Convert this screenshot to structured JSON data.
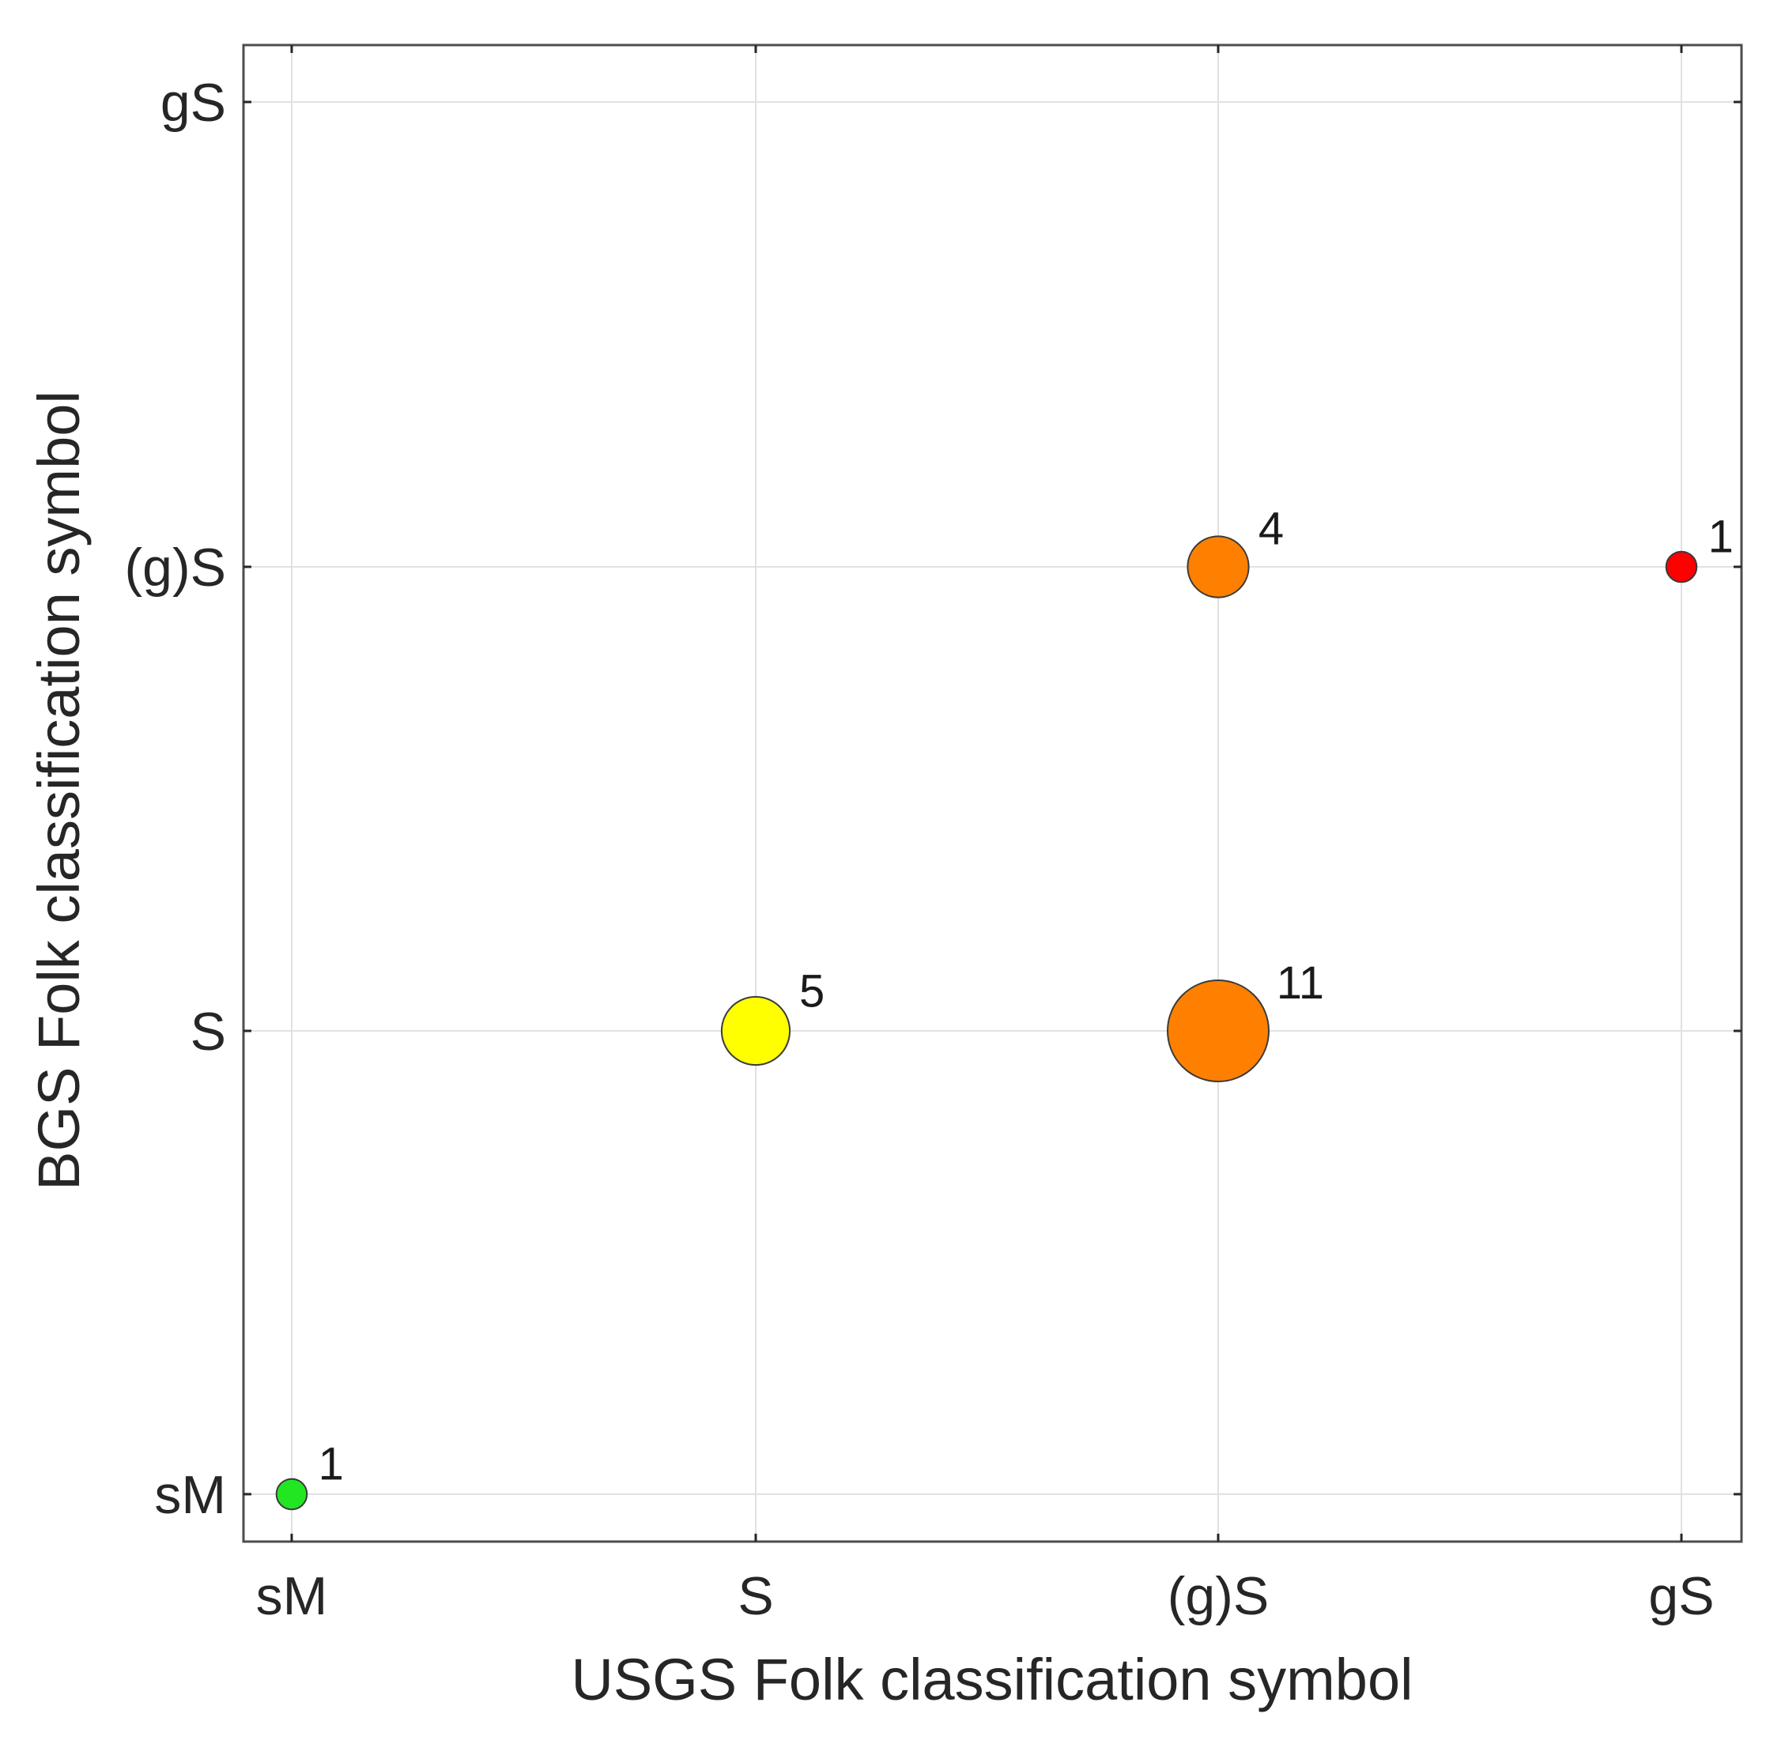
{
  "chart_data": {
    "type": "scatter",
    "title": "",
    "xlabel": "USGS Folk classification symbol",
    "ylabel": "BGS Folk classification symbol",
    "x_categories": [
      "sM",
      "S",
      "(g)S",
      "gS"
    ],
    "y_categories": [
      "sM",
      "S",
      "(g)S",
      "gS"
    ],
    "grid": true,
    "legend": "none",
    "points": [
      {
        "x": "sM",
        "y": "sM",
        "count": 1,
        "label": "1",
        "color": "#22e622"
      },
      {
        "x": "S",
        "y": "S",
        "count": 5,
        "label": "5",
        "color": "#ffff00"
      },
      {
        "x": "(g)S",
        "y": "S",
        "count": 11,
        "label": "11",
        "color": "#ff8000"
      },
      {
        "x": "(g)S",
        "y": "(g)S",
        "count": 4,
        "label": "4",
        "color": "#ff8000"
      },
      {
        "x": "gS",
        "y": "(g)S",
        "count": 1,
        "label": "1",
        "color": "#ff0000"
      }
    ]
  }
}
